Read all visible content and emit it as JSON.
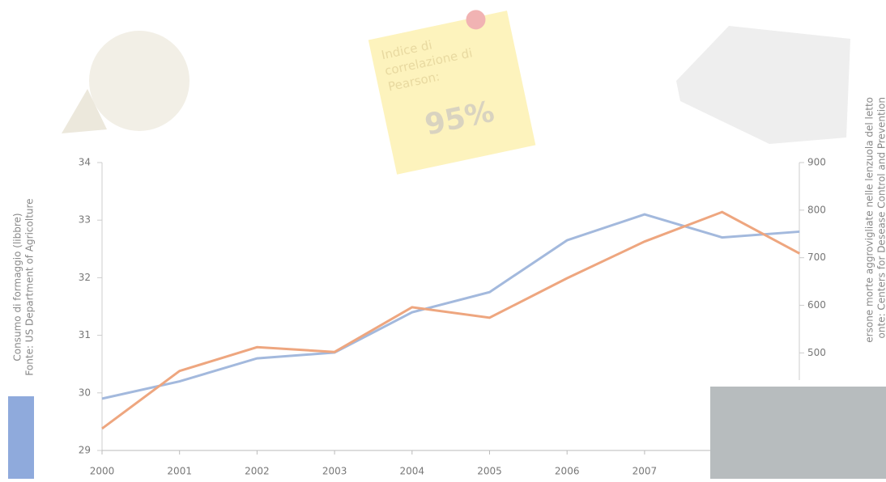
{
  "chart_data": {
    "type": "line",
    "note": {
      "text": "Indice di correlazione di Pearson:",
      "value": "95%"
    },
    "ylabel": [
      "Consumo di formaggio (libbre)",
      "Fonte: US Department of Agricolture"
    ],
    "y2label": [
      "ersone morte aggrovigliate nelle lenzuola del letto",
      "onte: Centers for Desease Control and Prevention"
    ],
    "categories": [
      "2000",
      "2001",
      "2002",
      "2003",
      "2004",
      "2005",
      "2006",
      "2007",
      null,
      null
    ],
    "ylim": [
      29,
      34
    ],
    "yticks": [
      29,
      30,
      31,
      32,
      33,
      34
    ],
    "y2lim": [
      295,
      900
    ],
    "y2ticks": [
      500,
      600,
      700,
      800,
      900
    ],
    "series": [
      {
        "color": "#a3b9dd",
        "values": [
          29.9,
          30.2,
          30.6,
          30.7,
          31.4,
          31.75,
          32.65,
          33.1,
          32.7,
          32.8
        ]
      },
      {
        "color": "#eea67f",
        "axis": "y2",
        "values": [
          341,
          462,
          512,
          502,
          596,
          574,
          657,
          734,
          796,
          709
        ]
      }
    ]
  }
}
